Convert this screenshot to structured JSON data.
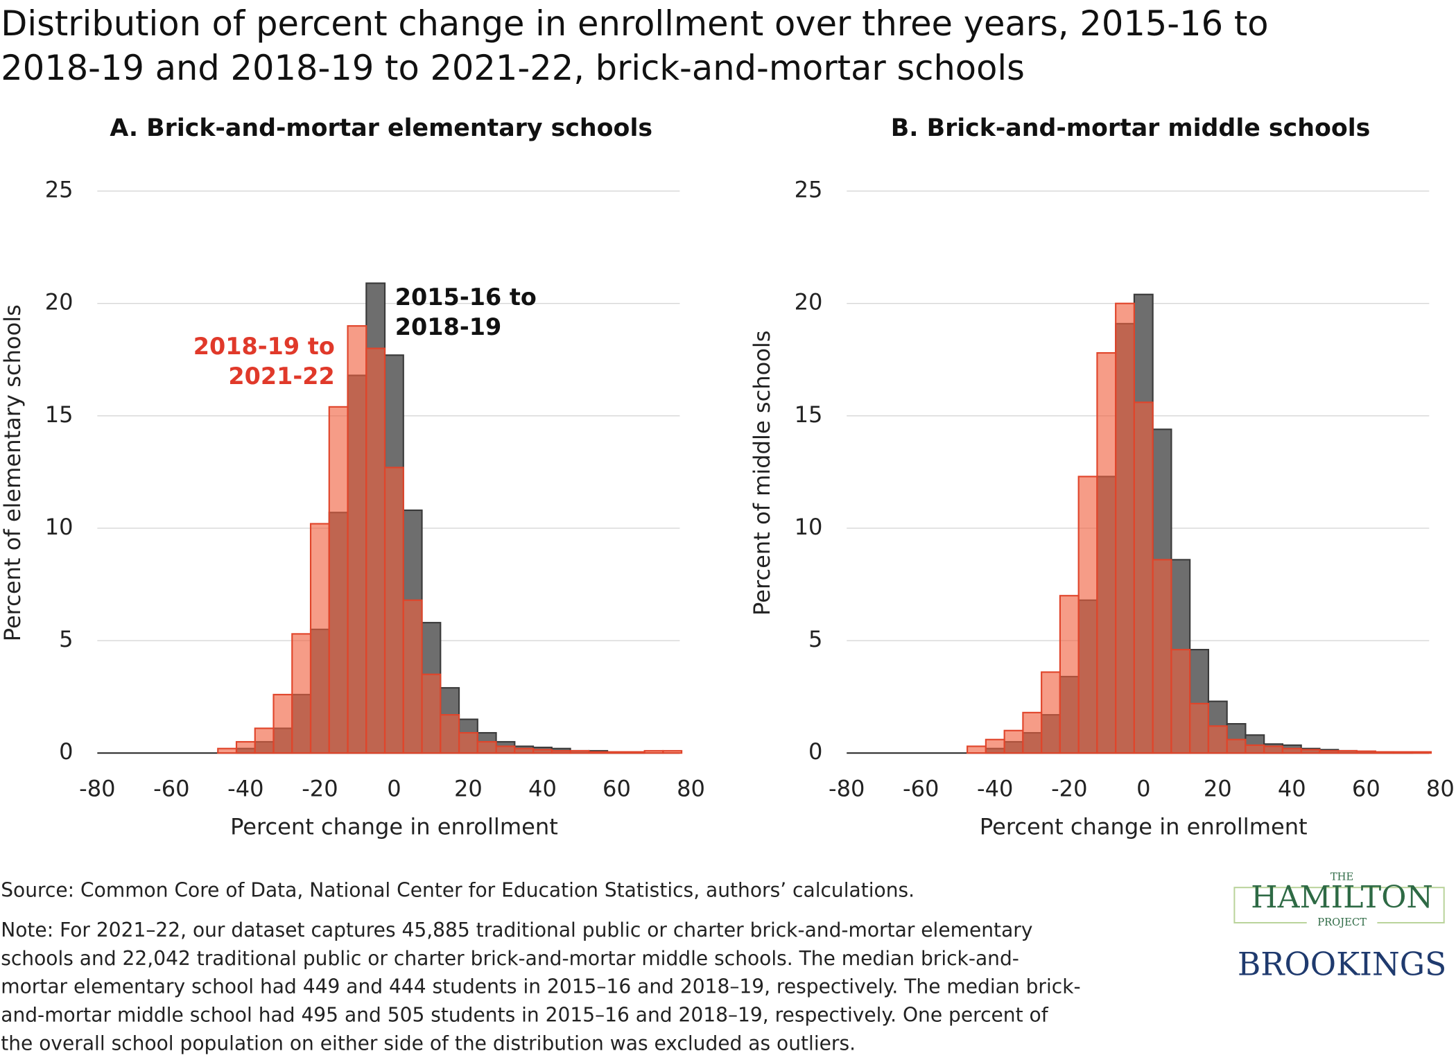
{
  "header": {
    "title": [
      "Distribution of percent change in enrollment over three years, 2015-16 to",
      "2018-19 and 2018-19 to 2021-22, brick-and-mortar schools"
    ]
  },
  "chart_data": [
    {
      "type": "histogram",
      "title": "A.  Brick-and-mortar elementary schools",
      "xlabel": "Percent change in enrollment",
      "ylabel": "Percent of elementary schools",
      "bins": [
        -47.5,
        -42.5,
        -37.5,
        -32.5,
        -27.5,
        -22.5,
        -17.5,
        -12.5,
        -7.5,
        -2.5,
        2.5,
        7.5,
        12.5,
        17.5,
        22.5,
        27.5,
        32.5,
        37.5,
        42.5,
        47.5,
        52.5,
        57.5,
        62.5,
        67.5,
        72.5,
        77.5
      ],
      "series": [
        {
          "color": "#6e6e6e",
          "values": [
            0,
            0.2,
            0.5,
            1.1,
            2.6,
            5.5,
            10.7,
            16.8,
            20.9,
            17.7,
            10.8,
            5.8,
            2.9,
            1.5,
            0.9,
            0.5,
            0.3,
            0.25,
            0.2,
            0.1,
            0.1,
            0.05,
            0.05,
            0,
            0
          ]
        },
        {
          "color": "#f0603e",
          "values": [
            0.2,
            0.5,
            1.1,
            2.6,
            5.3,
            10.2,
            15.4,
            19.0,
            18.0,
            12.7,
            6.8,
            3.5,
            1.7,
            0.9,
            0.5,
            0.3,
            0.2,
            0.15,
            0.1,
            0.1,
            0.05,
            0.05,
            0.05,
            0.1,
            0.1
          ]
        }
      ],
      "annotations": [
        {
          "lines": [
            "2015-16 to",
            "2018-19"
          ],
          "color": "#111111"
        },
        {
          "lines": [
            "2018-19 to",
            "2021-22"
          ],
          "color": "#e0392a"
        }
      ],
      "xlim": [
        -80,
        80
      ],
      "xticks": [
        -80,
        -60,
        -40,
        -20,
        0,
        20,
        40,
        60,
        80
      ],
      "ylim": [
        0,
        25
      ],
      "yticks": [
        0,
        5,
        10,
        15,
        20,
        25
      ],
      "grid": true
    },
    {
      "type": "histogram",
      "title": "B. Brick-and-mortar middle schools",
      "xlabel": "Percent change in enrollment",
      "ylabel": "Percent of middle schools",
      "bins": [
        -47.5,
        -42.5,
        -37.5,
        -32.5,
        -27.5,
        -22.5,
        -17.5,
        -12.5,
        -7.5,
        -2.5,
        2.5,
        7.5,
        12.5,
        17.5,
        22.5,
        27.5,
        32.5,
        37.5,
        42.5,
        47.5,
        52.5,
        57.5,
        62.5,
        67.5,
        72.5,
        77.5
      ],
      "series": [
        {
          "color": "#6e6e6e",
          "values": [
            0,
            0.2,
            0.5,
            0.9,
            1.7,
            3.4,
            6.8,
            12.3,
            19.1,
            20.4,
            14.4,
            8.6,
            4.6,
            2.3,
            1.3,
            0.8,
            0.4,
            0.35,
            0.2,
            0.15,
            0.1,
            0.08,
            0.05,
            0.02,
            0
          ]
        },
        {
          "color": "#f0603e",
          "values": [
            0.3,
            0.6,
            1.0,
            1.8,
            3.6,
            7.0,
            12.3,
            17.8,
            20.0,
            15.6,
            8.6,
            4.6,
            2.2,
            1.2,
            0.6,
            0.35,
            0.3,
            0.2,
            0.15,
            0.1,
            0.1,
            0.08,
            0.05,
            0.05,
            0.05
          ]
        }
      ],
      "xlim": [
        -80,
        80
      ],
      "xticks": [
        -80,
        -60,
        -40,
        -20,
        0,
        20,
        40,
        60,
        80
      ],
      "ylim": [
        0,
        25
      ],
      "yticks": [
        0,
        5,
        10,
        15,
        20,
        25
      ],
      "grid": true
    }
  ],
  "footer": {
    "source": "Source: Common Core of Data, National Center for Education Statistics, authors’ calculations.",
    "note": [
      "Note: For 2021–22, our dataset captures 45,885 traditional public or charter brick-and-mortar elementary",
      "schools and 22,042 traditional public or charter brick-and-mortar middle schools. The median brick-and-",
      "mortar elementary school had 449 and 444 students in 2015–16 and 2018–19, respectively. The median brick-",
      "and-mortar middle school had 495 and 505 students in 2015–16 and 2018–19, respectively. One percent of",
      "the overall school population on either side of the distribution was excluded as outliers."
    ]
  },
  "logos": {
    "the": "THE",
    "hamilton": "HAMILTON",
    "project": "PROJECT",
    "brookings": "BROOKINGS"
  }
}
